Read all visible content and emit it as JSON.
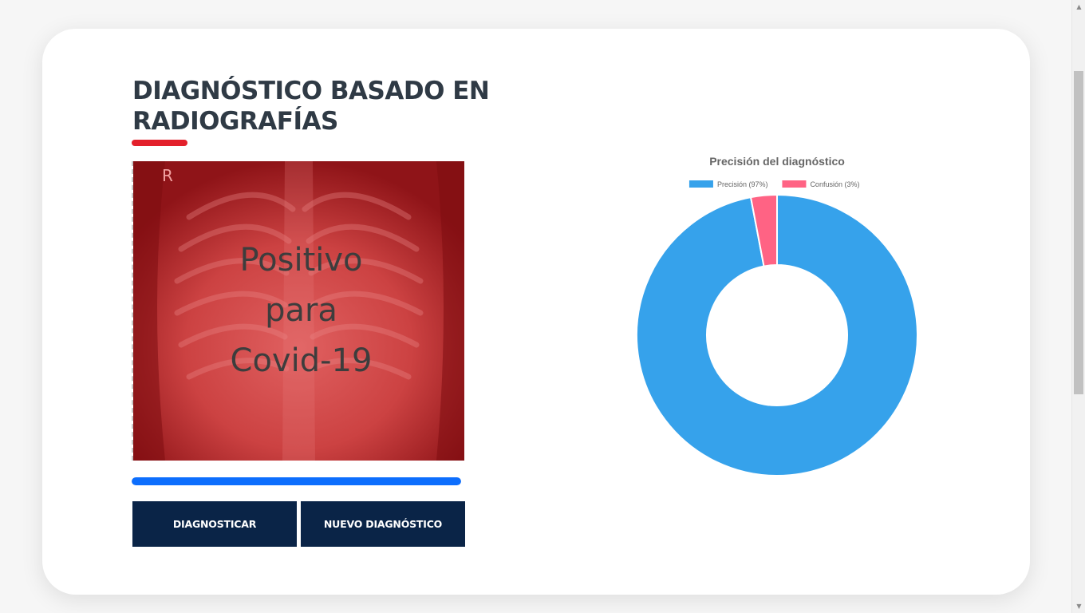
{
  "page": {
    "title_line1": "DIAGNÓSTICO BASADO EN",
    "title_line2": "RADIOGRAFÍAS"
  },
  "xray": {
    "marker": "R",
    "result_line1": "Positivo",
    "result_line2": "para",
    "result_line3": "Covid-19",
    "overlay_color": "#c9262c"
  },
  "progress": {
    "value_percent": 100,
    "color": "#0d6efd"
  },
  "buttons": {
    "diagnose_label": "DIAGNOSTICAR",
    "new_label": "NUEVO DIAGNÓSTICO",
    "color": "#0a2447"
  },
  "colors": {
    "accent_red": "#e3202b",
    "title_text": "#2f3a45"
  },
  "chart_data": {
    "type": "pie",
    "subtype": "doughnut",
    "title": "Precisión del diagnóstico",
    "categories": [
      "Precisión (97%)",
      "Confusión (3%)"
    ],
    "values": [
      97,
      3
    ],
    "colors": [
      "#36a2eb",
      "#ff6384"
    ],
    "legend_position": "top"
  }
}
